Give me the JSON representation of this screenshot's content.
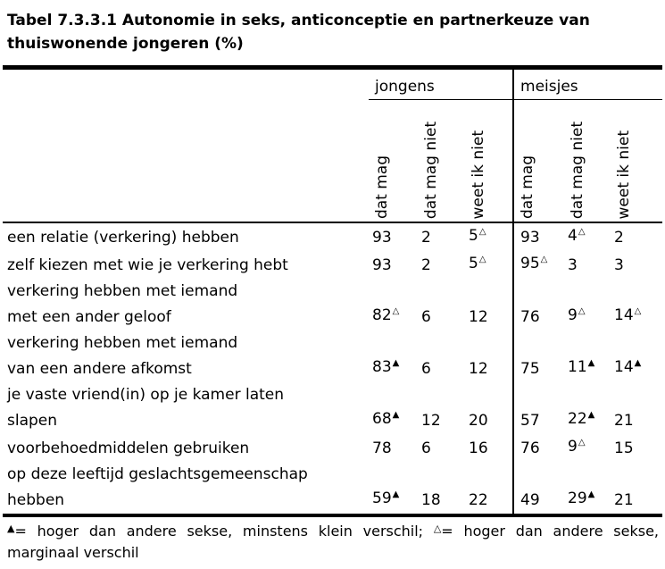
{
  "colors": {
    "text": "#000000",
    "background": "#ffffff",
    "rules": "#000000"
  },
  "title": {
    "line1": "Tabel 7.3.3.1 Autonomie in seks, anticonceptie en partnerkeuze van",
    "line2": "thuiswonende jongeren (%)"
  },
  "table": {
    "group_jongens": "jongens",
    "group_meisjes": "meisjes",
    "columns": {
      "c1": "dat mag",
      "c2": "dat mag niet",
      "c3": "weet ik niet"
    },
    "rows": [
      {
        "label": "een relatie (verkering) hebben",
        "cells": [
          {
            "n": "93",
            "s": ""
          },
          {
            "n": "2",
            "s": ""
          },
          {
            "n": "5",
            "s": "△"
          },
          {
            "n": "93",
            "s": ""
          },
          {
            "n": "4",
            "s": "△"
          },
          {
            "n": "2",
            "s": ""
          }
        ]
      },
      {
        "label": "zelf kiezen met wie je verkering hebt",
        "cells": [
          {
            "n": "93",
            "s": ""
          },
          {
            "n": "2",
            "s": ""
          },
          {
            "n": "5",
            "s": "△"
          },
          {
            "n": "95",
            "s": "△"
          },
          {
            "n": "3",
            "s": ""
          },
          {
            "n": "3",
            "s": ""
          }
        ]
      },
      {
        "label": "verkering hebben met iemand\nmet een ander geloof",
        "cells": [
          {
            "n": "82",
            "s": "△"
          },
          {
            "n": "6",
            "s": ""
          },
          {
            "n": "12",
            "s": ""
          },
          {
            "n": "76",
            "s": ""
          },
          {
            "n": "9",
            "s": "△"
          },
          {
            "n": "14",
            "s": "△"
          }
        ]
      },
      {
        "label": "verkering hebben met iemand\nvan een andere afkomst",
        "cells": [
          {
            "n": "83",
            "s": "▲"
          },
          {
            "n": "6",
            "s": ""
          },
          {
            "n": "12",
            "s": ""
          },
          {
            "n": "75",
            "s": ""
          },
          {
            "n": "11",
            "s": "▲"
          },
          {
            "n": "14",
            "s": "▲"
          }
        ]
      },
      {
        "label": "je vaste vriend(in) op je kamer laten\nslapen",
        "cells": [
          {
            "n": "68",
            "s": "▲"
          },
          {
            "n": "12",
            "s": ""
          },
          {
            "n": "20",
            "s": ""
          },
          {
            "n": "57",
            "s": ""
          },
          {
            "n": "22",
            "s": "▲"
          },
          {
            "n": "21",
            "s": ""
          }
        ]
      },
      {
        "label": "voorbehoedmiddelen gebruiken",
        "cells": [
          {
            "n": "78",
            "s": ""
          },
          {
            "n": "6",
            "s": ""
          },
          {
            "n": "16",
            "s": ""
          },
          {
            "n": "76",
            "s": ""
          },
          {
            "n": "9",
            "s": "△"
          },
          {
            "n": "15",
            "s": ""
          }
        ]
      },
      {
        "label": "op deze leeftijd geslachtsgemeenschap\nhebben",
        "cells": [
          {
            "n": "59",
            "s": "▲"
          },
          {
            "n": "18",
            "s": ""
          },
          {
            "n": "22",
            "s": ""
          },
          {
            "n": "49",
            "s": ""
          },
          {
            "n": "29",
            "s": "▲"
          },
          {
            "n": "21",
            "s": ""
          }
        ]
      }
    ]
  },
  "footnote": {
    "marker1": "▲",
    "text1": "= hoger dan andere sekse, minstens klein verschil; ",
    "marker2": "△",
    "text2": "= hoger dan andere sekse,",
    "line2": "marginaal verschil"
  }
}
